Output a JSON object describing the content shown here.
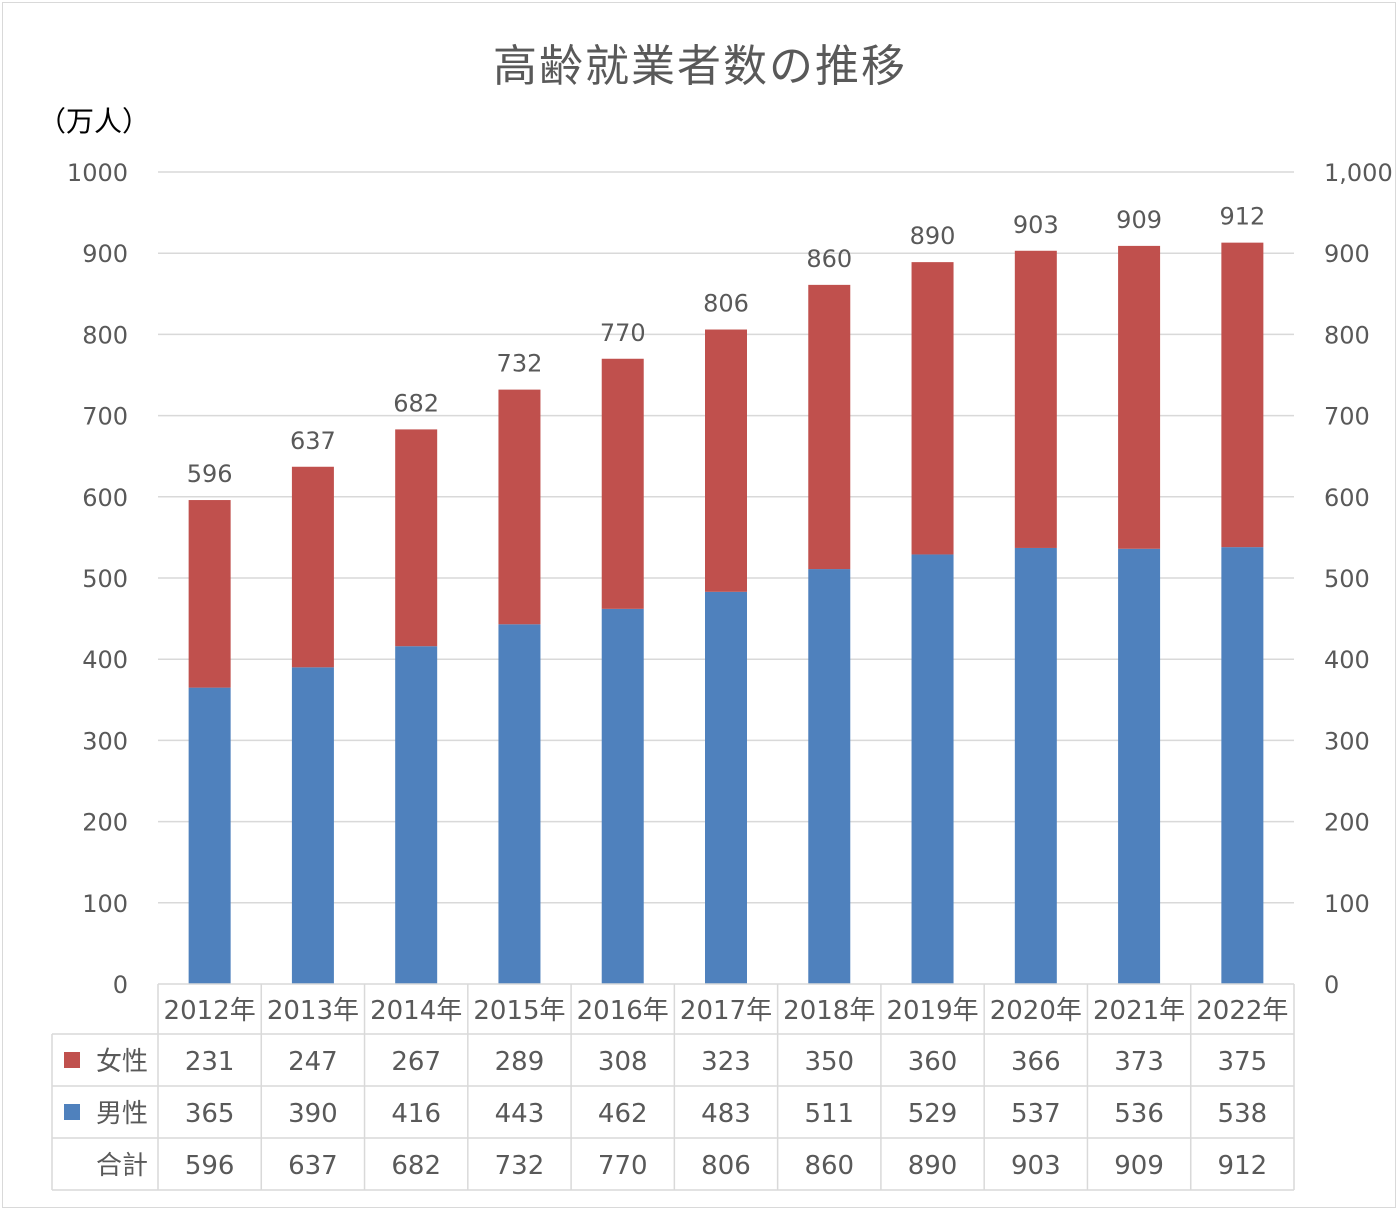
{
  "chart_data": {
    "type": "bar",
    "stacked": true,
    "title": "高齢就業者数の推移",
    "unit_label": "（万人）",
    "categories": [
      "2012年",
      "2013年",
      "2014年",
      "2015年",
      "2016年",
      "2017年",
      "2018年",
      "2019年",
      "2020年",
      "2021年",
      "2022年"
    ],
    "series": [
      {
        "name": "男性",
        "color": "#4f81bd",
        "values": [
          365,
          390,
          416,
          443,
          462,
          483,
          511,
          529,
          537,
          536,
          538
        ]
      },
      {
        "name": "女性",
        "color": "#c0504d",
        "values": [
          231,
          247,
          267,
          289,
          308,
          323,
          350,
          360,
          366,
          373,
          375
        ]
      }
    ],
    "totals": {
      "name": "合計",
      "values": [
        596,
        637,
        682,
        732,
        770,
        806,
        860,
        890,
        903,
        909,
        912
      ]
    },
    "ylim": [
      0,
      1000
    ],
    "y_ticks_left": [
      "0",
      "100",
      "200",
      "300",
      "400",
      "500",
      "600",
      "700",
      "800",
      "900",
      "1000"
    ],
    "y_ticks_right": [
      "0",
      "100",
      "200",
      "300",
      "400",
      "500",
      "600",
      "700",
      "800",
      "900",
      "1,000"
    ],
    "grid": true,
    "legend": "data-table",
    "table_rows": [
      "女性",
      "男性",
      "合計"
    ]
  }
}
